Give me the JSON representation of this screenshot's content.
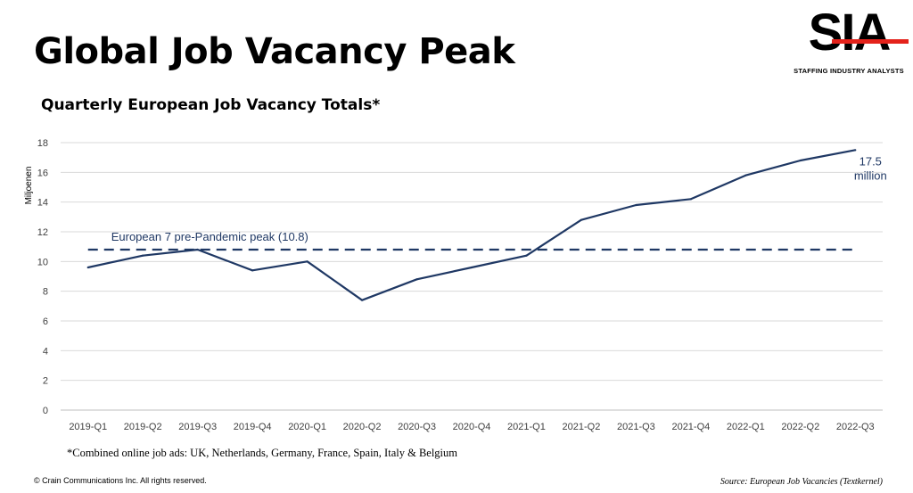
{
  "header": {
    "title": "Global Job Vacancy Peak",
    "subtitle": "Quarterly European Job Vacancy Totals*"
  },
  "logo": {
    "letters": "SIA",
    "tagline": "STAFFING INDUSTRY ANALYSTS",
    "accent_color": "#e4221b"
  },
  "footer": {
    "footnote": "*Combined online job ads: UK, Netherlands, Germany, France, Spain, Italy & Belgium",
    "copyright": "© Crain Communications Inc. All rights reserved.",
    "source": "Source:  European Job Vacancies (Textkernel)"
  },
  "chart_data": {
    "type": "line",
    "title": "Quarterly European Job Vacancy Totals*",
    "xlabel": "",
    "ylabel": "Miljoenen",
    "ylim": [
      0,
      18
    ],
    "yticks": [
      0,
      2,
      4,
      6,
      8,
      10,
      12,
      14,
      16,
      18
    ],
    "grid": true,
    "categories": [
      "2019-Q1",
      "2019-Q2",
      "2019-Q3",
      "2019-Q4",
      "2020-Q1",
      "2020-Q2",
      "2020-Q3",
      "2020-Q4",
      "2021-Q1",
      "2021-Q2",
      "2021-Q3",
      "2021-Q4",
      "2022-Q1",
      "2022-Q2",
      "2022-Q3"
    ],
    "series": [
      {
        "values": [
          9.6,
          10.4,
          10.8,
          9.4,
          10.0,
          7.4,
          8.8,
          9.6,
          10.4,
          12.8,
          13.8,
          14.2,
          15.8,
          16.8,
          17.5
        ],
        "color": "#1f3864"
      }
    ],
    "reference_line": {
      "value": 10.8,
      "label": "European 7 pre-Pandemic peak (10.8)",
      "style": "dashed",
      "color": "#1f3864"
    },
    "annotations": [
      {
        "text": "17.5",
        "category": "2022-Q3"
      },
      {
        "text": "million",
        "category": "2022-Q3"
      }
    ]
  }
}
